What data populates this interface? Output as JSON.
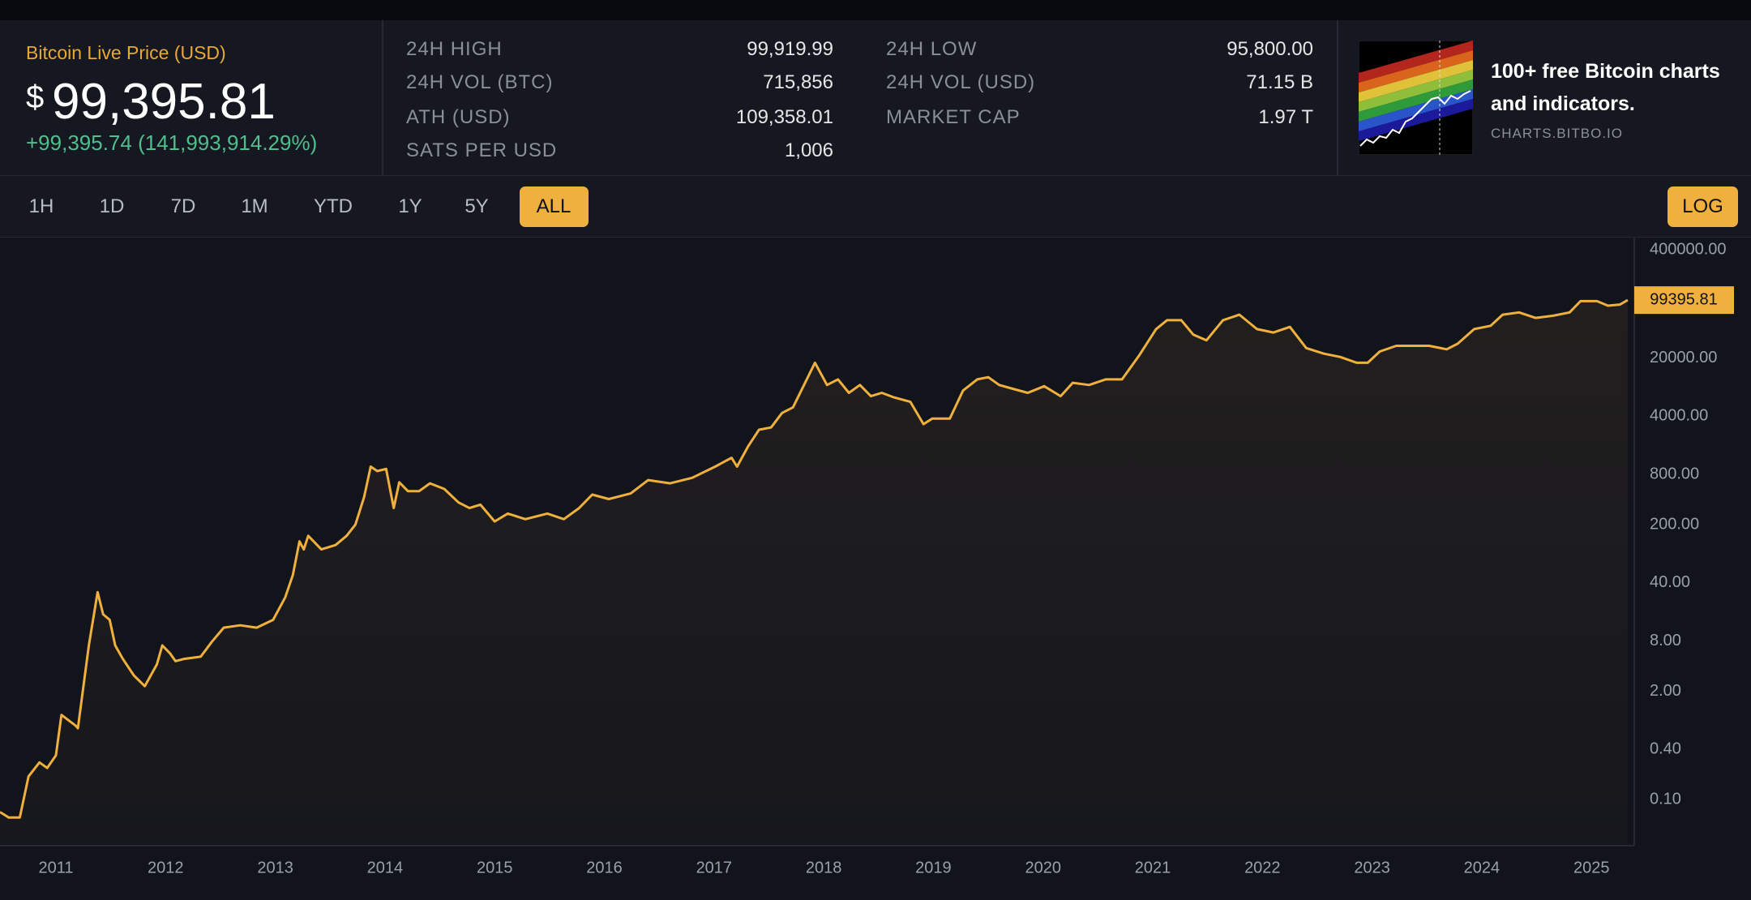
{
  "header": {
    "title": "Bitcoin Live Price (USD)",
    "price_symbol": "$",
    "price": "99,395.81",
    "change": "+99,395.74 (141,993,914.29%)",
    "stats": [
      [
        {
          "label": "24H HIGH",
          "value": "99,919.99"
        },
        {
          "label": "24H VOL (BTC)",
          "value": "715,856"
        },
        {
          "label": "ATH (USD)",
          "value": "109,358.01"
        },
        {
          "label": "SATS PER USD",
          "value": "1,006"
        }
      ],
      [
        {
          "label": "24H LOW",
          "value": "95,800.00"
        },
        {
          "label": "24H VOL (USD)",
          "value": "71.15 B"
        },
        {
          "label": "MARKET CAP",
          "value": "1.97 T"
        }
      ]
    ],
    "ad": {
      "text": "100+ free Bitcoin charts and indicators.",
      "url": "CHARTS.BITBO.IO"
    }
  },
  "ranges": {
    "options": [
      "1H",
      "1D",
      "7D",
      "1M",
      "YTD",
      "1Y",
      "5Y",
      "ALL"
    ],
    "active_index": 7
  },
  "log_button": "LOG",
  "chart_data": {
    "type": "line",
    "color": "#f0b03d",
    "log_scale": true,
    "grid": false,
    "x": [
      2010.49,
      2010.57,
      2010.67,
      2010.75,
      2010.85,
      2010.92,
      2011.0,
      2011.05,
      2011.18,
      2011.2,
      2011.3,
      2011.38,
      2011.43,
      2011.49,
      2011.54,
      2011.61,
      2011.71,
      2011.81,
      2011.92,
      2011.97,
      2012.04,
      2012.09,
      2012.17,
      2012.32,
      2012.42,
      2012.53,
      2012.68,
      2012.83,
      2012.98,
      2013.09,
      2013.16,
      2013.22,
      2013.26,
      2013.3,
      2013.42,
      2013.55,
      2013.65,
      2013.73,
      2013.81,
      2013.87,
      2013.93,
      2014.01,
      2014.08,
      2014.13,
      2014.21,
      2014.31,
      2014.41,
      2014.54,
      2014.67,
      2014.77,
      2014.87,
      2015.0,
      2015.12,
      2015.28,
      2015.48,
      2015.63,
      2015.77,
      2015.89,
      2016.04,
      2016.24,
      2016.4,
      2016.6,
      2016.8,
      2017.01,
      2017.16,
      2017.21,
      2017.31,
      2017.41,
      2017.52,
      2017.62,
      2017.72,
      2017.82,
      2017.92,
      2018.03,
      2018.13,
      2018.23,
      2018.33,
      2018.43,
      2018.53,
      2018.64,
      2018.79,
      2018.91,
      2018.99,
      2019.15,
      2019.27,
      2019.4,
      2019.5,
      2019.6,
      2019.71,
      2019.86,
      2020.01,
      2020.16,
      2020.27,
      2020.42,
      2020.57,
      2020.72,
      2020.88,
      2021.03,
      2021.13,
      2021.26,
      2021.37,
      2021.49,
      2021.64,
      2021.79,
      2021.95,
      2022.1,
      2022.25,
      2022.4,
      2022.56,
      2022.71,
      2022.86,
      2022.96,
      2023.07,
      2023.22,
      2023.37,
      2023.52,
      2023.68,
      2023.78,
      2023.93,
      2024.08,
      2024.19,
      2024.34,
      2024.49,
      2024.65,
      2024.8,
      2024.9,
      2025.05,
      2025.15,
      2025.26,
      2025.33
    ],
    "values": [
      0.071,
      0.061,
      0.061,
      0.19,
      0.28,
      0.24,
      0.34,
      1.04,
      0.77,
      0.72,
      7.1,
      31,
      16.8,
      14.4,
      7.1,
      4.9,
      3.1,
      2.3,
      4.2,
      7.1,
      5.7,
      4.6,
      4.9,
      5.2,
      7.8,
      11.6,
      12.4,
      11.6,
      14.4,
      26.8,
      50,
      126,
      101,
      147,
      101,
      114,
      147,
      200,
      432,
      995,
      880,
      935,
      317,
      646,
      505,
      505,
      627,
      537,
      370,
      317,
      348,
      219,
      272,
      233,
      272,
      233,
      317,
      459,
      406,
      474,
      687,
      627,
      731,
      995,
      1270,
      995,
      1740,
      2760,
      2940,
      4390,
      5120,
      9510,
      17600,
      9510,
      11100,
      7660,
      9510,
      6980,
      7660,
      6760,
      5970,
      3220,
      3760,
      3760,
      8150,
      11100,
      11800,
      9510,
      8670,
      7660,
      9200,
      6980,
      10100,
      9510,
      11100,
      11100,
      21900,
      44600,
      57000,
      57000,
      38200,
      32700,
      57000,
      66500,
      44600,
      40600,
      47400,
      26400,
      22600,
      20600,
      17600,
      17600,
      24000,
      28100,
      28100,
      28100,
      25500,
      29800,
      44600,
      48900,
      66500,
      70800,
      60700,
      64600,
      70800,
      96600,
      96600,
      85300,
      87900,
      99395.81
    ],
    "xlim": [
      2010.49,
      2025.39
    ],
    "xticks": [
      2011,
      2012,
      2013,
      2014,
      2015,
      2016,
      2017,
      2018,
      2019,
      2020,
      2021,
      2022,
      2023,
      2024,
      2025
    ],
    "ylim": [
      0.028,
      560000
    ],
    "yticks": [
      {
        "value": 0.1,
        "label": "0.10"
      },
      {
        "value": 0.4,
        "label": "0.40"
      },
      {
        "value": 2,
        "label": "2.00"
      },
      {
        "value": 8,
        "label": "8.00"
      },
      {
        "value": 40,
        "label": "40.00"
      },
      {
        "value": 200,
        "label": "200.00"
      },
      {
        "value": 800,
        "label": "800.00"
      },
      {
        "value": 4000,
        "label": "4000.00"
      },
      {
        "value": 20000,
        "label": "20000.00"
      },
      {
        "value": 400000,
        "label": "400000.00"
      }
    ]
  }
}
